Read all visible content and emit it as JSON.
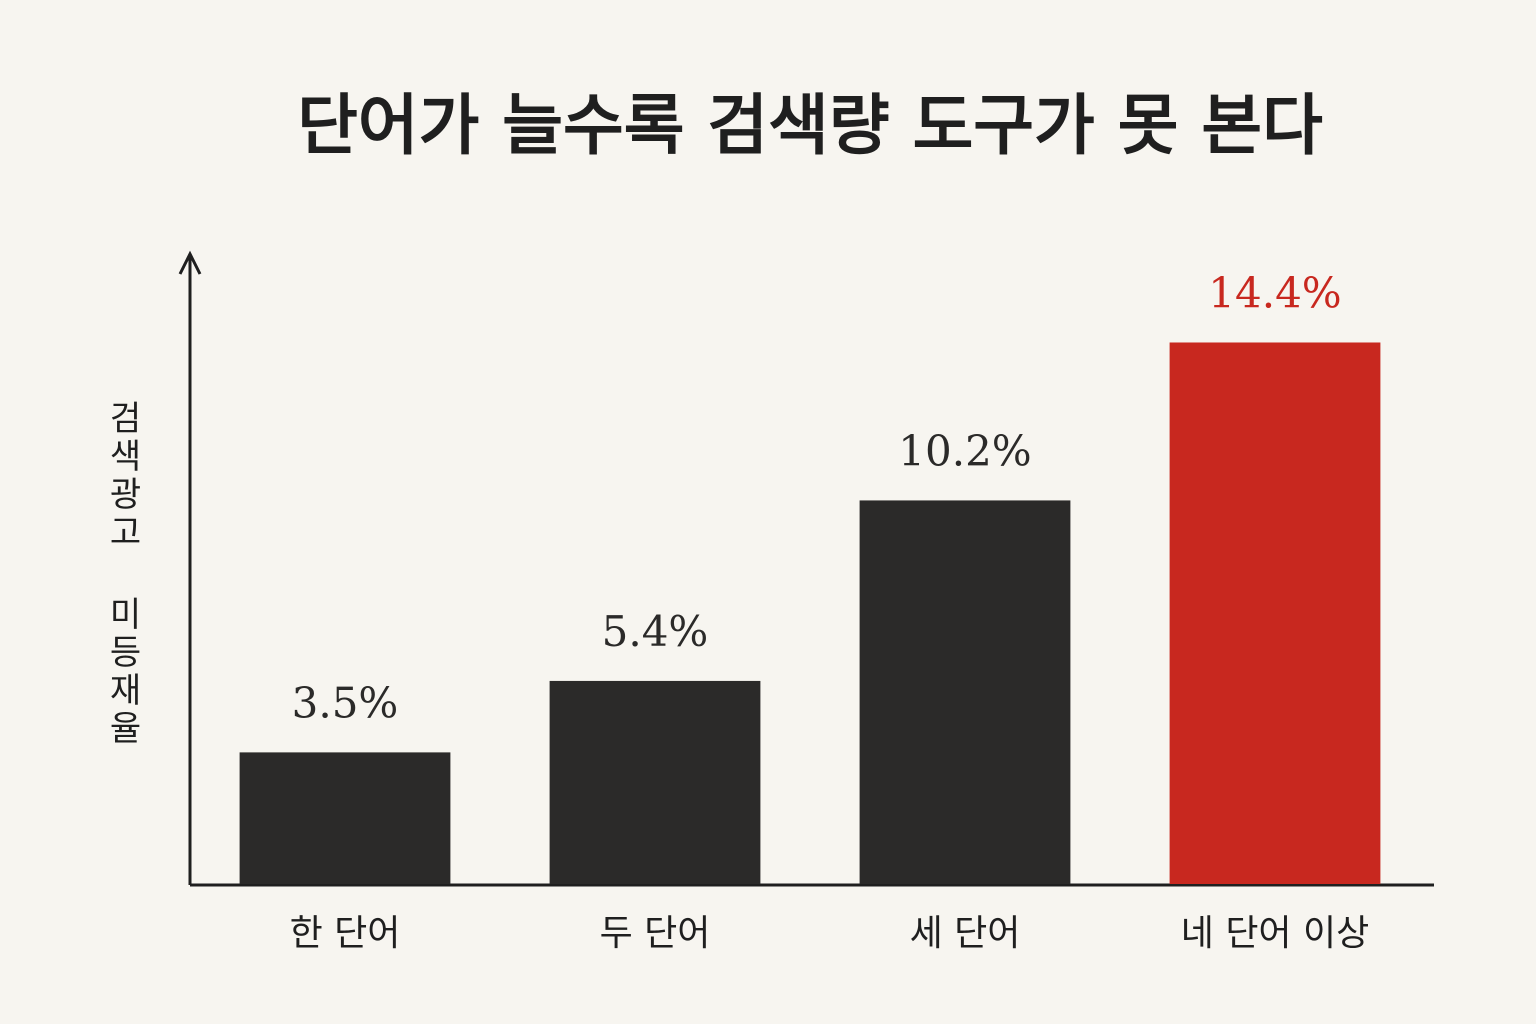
{
  "chart_data": {
    "type": "bar",
    "title": "단어가 늘수록 검색량 도구가 못 본다",
    "y_label": "검색광고 미등재율",
    "categories": [
      "한 단어",
      "두 단어",
      "세 단어",
      "네 단어 이상"
    ],
    "values": [
      3.5,
      5.4,
      10.2,
      14.4
    ],
    "value_labels": [
      "3.5%",
      "5.4%",
      "10.2%",
      "14.4%"
    ],
    "colors": [
      "#2b2a29",
      "#2b2a29",
      "#2b2a29",
      "#c8281f"
    ],
    "ylim": [
      0,
      16.7
    ]
  }
}
